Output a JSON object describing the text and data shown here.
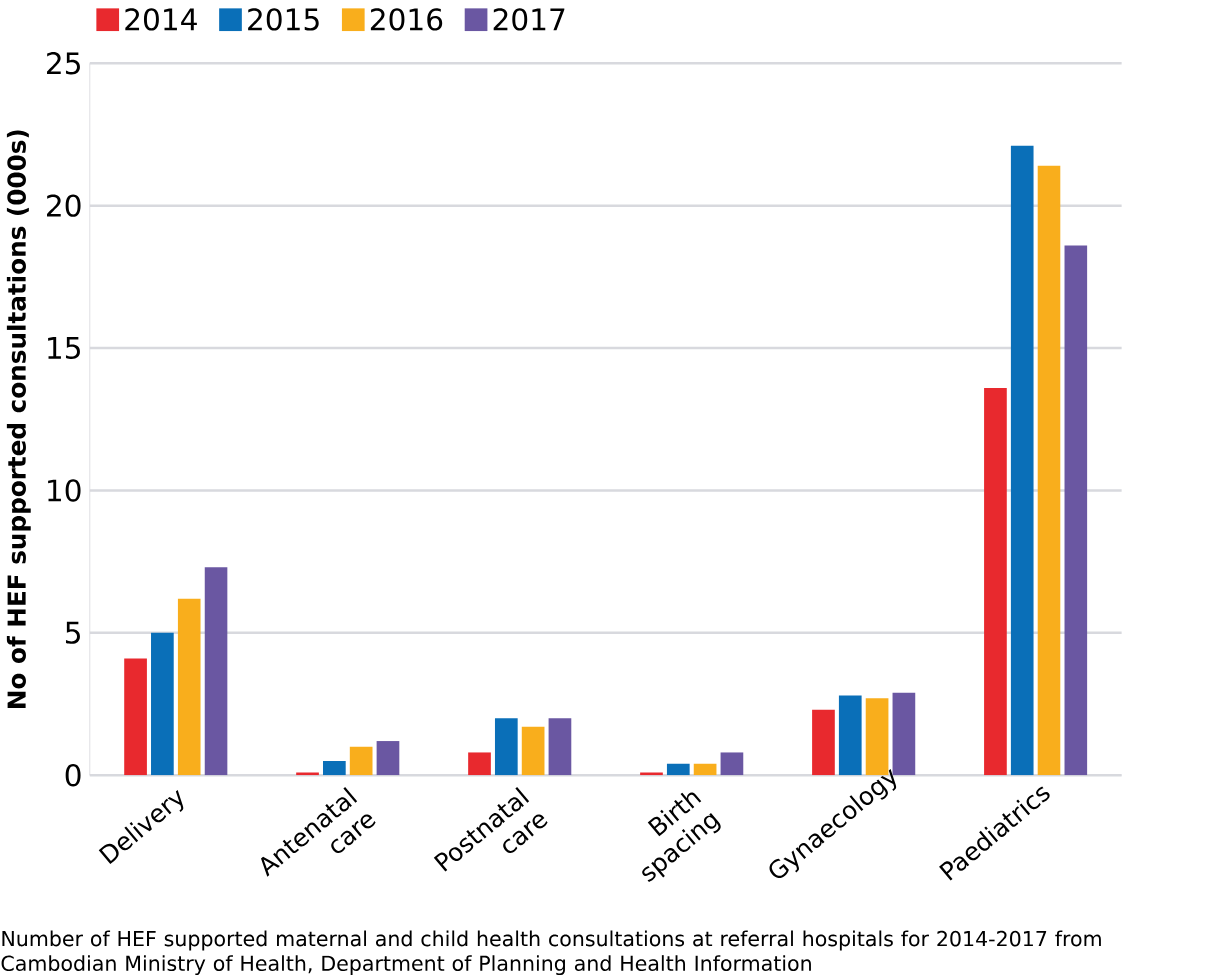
{
  "chart_data": {
    "type": "bar",
    "ylabel": "No of HEF supported consultations (000s)",
    "categories": [
      "Delivery",
      "Antenatal care",
      "Postnatal care",
      "Birth spacing",
      "Gynaecology",
      "Paediatrics"
    ],
    "series": [
      {
        "name": "2014",
        "color": "#e8292e",
        "values": [
          4.1,
          0.1,
          0.8,
          0.1,
          2.3,
          13.6
        ]
      },
      {
        "name": "2015",
        "color": "#0a6fb8",
        "values": [
          5.0,
          0.5,
          2.0,
          0.4,
          2.8,
          22.1
        ]
      },
      {
        "name": "2016",
        "color": "#f9ae1c",
        "values": [
          6.2,
          1.0,
          1.7,
          0.4,
          2.7,
          21.4
        ]
      },
      {
        "name": "2017",
        "color": "#6a57a2",
        "values": [
          7.3,
          1.2,
          2.0,
          0.8,
          2.9,
          18.6
        ]
      }
    ],
    "ylim": [
      0,
      25
    ],
    "yticks": [
      0,
      5,
      10,
      15,
      20,
      25
    ],
    "grid": "y",
    "legend": "top",
    "annotations": [
      "Number of HEF supported maternal and child health consultations at referral hospitals for 2014-2017 from Cambodian Ministry of Health, Department of Planning and Health Information"
    ]
  }
}
